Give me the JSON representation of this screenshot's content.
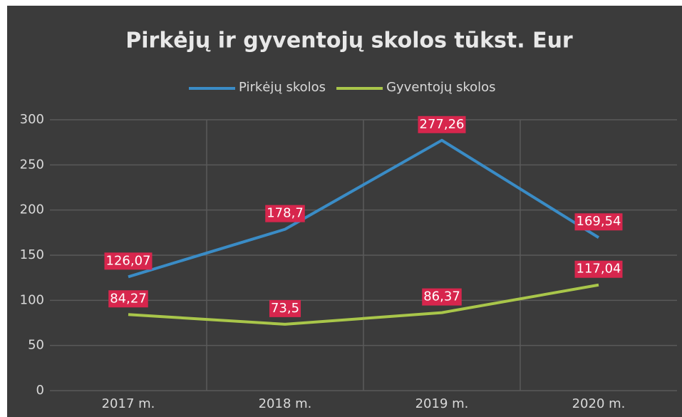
{
  "chart_data": {
    "type": "line",
    "title": "Pirkėjų ir gyventojų skolos tūkst. Eur",
    "categories": [
      "2017 m.",
      "2018 m.",
      "2019 m.",
      "2020 m."
    ],
    "series": [
      {
        "name": "Pirkėjų skolos",
        "color": "#3a8cc6",
        "values": [
          126.07,
          178.7,
          277.26,
          169.54
        ],
        "value_labels": [
          "126,07",
          "178,7",
          "277,26",
          "169,54"
        ]
      },
      {
        "name": "Gyventojų skolos",
        "color": "#a9c64a",
        "values": [
          84.27,
          73.5,
          86.37,
          117.04
        ],
        "value_labels": [
          "84,27",
          "73,5",
          "86,37",
          "117,04"
        ]
      }
    ],
    "ylim": [
      0,
      300
    ],
    "yticks": [
      0,
      50,
      100,
      150,
      200,
      250,
      300
    ],
    "grid": true,
    "legend": "top",
    "label_color": "#d7264d"
  }
}
